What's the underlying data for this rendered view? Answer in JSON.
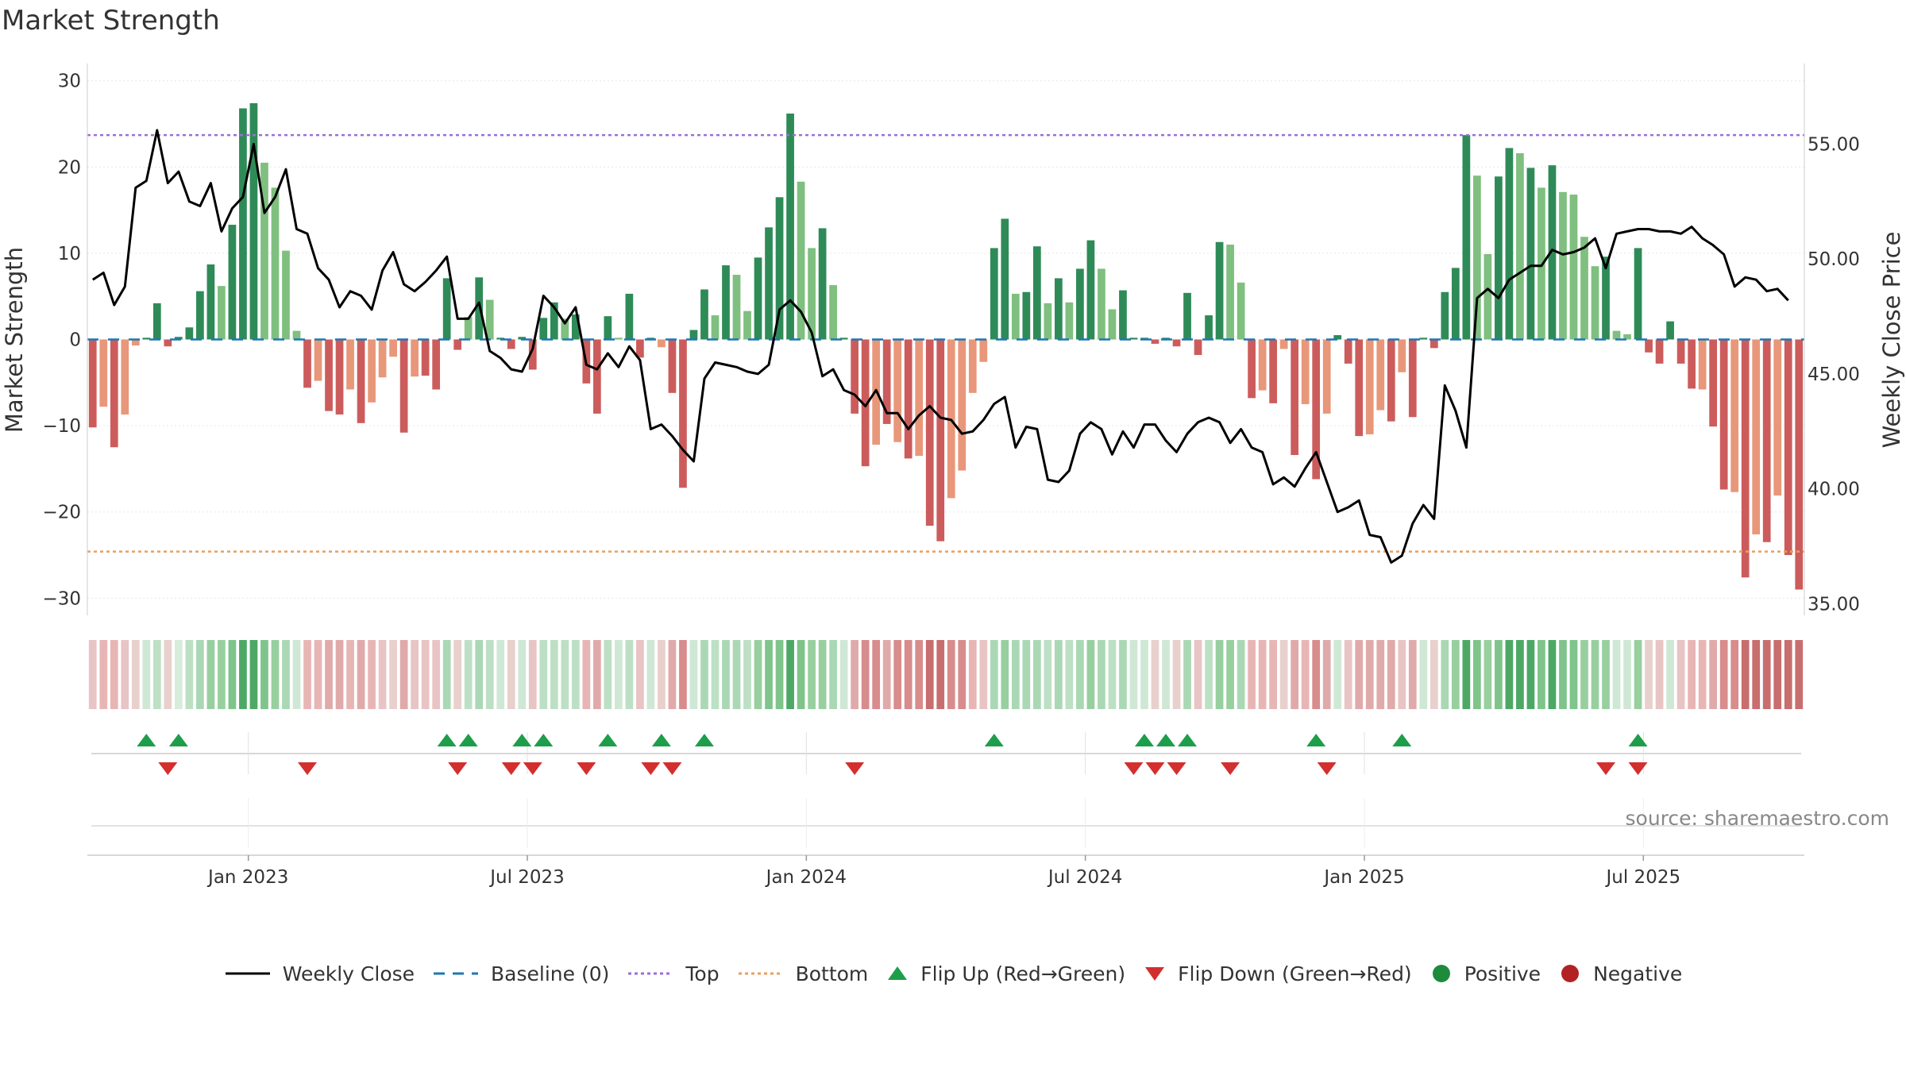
{
  "chart_data": {
    "type": "bar",
    "title": "Market Strength",
    "ylabel_left": "Market Strength",
    "ylabel_right": "Weekly Close Price",
    "ylim_left": [
      -32,
      32
    ],
    "ylim_right": [
      34.5,
      58.5
    ],
    "yticks_left": [
      "30",
      "20",
      "10",
      "0",
      "−10",
      "−20",
      "−30"
    ],
    "yticks_left_values": [
      30,
      20,
      10,
      0,
      -10,
      -20,
      -30
    ],
    "yticks_right": [
      "55.00",
      "50.00",
      "45.00",
      "40.00",
      "35.00"
    ],
    "yticks_right_values": [
      55,
      50,
      45,
      40,
      35
    ],
    "x_labels": [
      "Jan 2023",
      "Jul 2023",
      "Jan 2024",
      "Jul 2024",
      "Jan 2025",
      "Jul 2025"
    ],
    "x_label_weeks": [
      14.5,
      40.5,
      66.5,
      92.5,
      118.5,
      144.5
    ],
    "top_level": 23.7,
    "bottom_level": -24.6,
    "baseline": 0,
    "strength": [
      -10.2,
      -7.8,
      -12.5,
      -8.7,
      -0.7,
      0.2,
      4.2,
      -0.8,
      0.3,
      1.4,
      5.6,
      8.7,
      6.2,
      13.3,
      26.8,
      27.4,
      20.5,
      17.6,
      10.3,
      1.0,
      -5.6,
      -4.8,
      -8.3,
      -8.7,
      -5.8,
      -9.7,
      -7.3,
      -4.4,
      -2.0,
      -10.8,
      -4.3,
      -4.2,
      -5.8,
      7.1,
      -1.2,
      2.6,
      7.2,
      4.6,
      0.2,
      -1.1,
      0.3,
      -3.5,
      2.5,
      4.3,
      2.4,
      2.9,
      -5.1,
      -8.6,
      2.7,
      0.2,
      5.3,
      -2.1,
      0.2,
      -0.9,
      -6.2,
      -17.2,
      1.1,
      5.8,
      2.8,
      8.6,
      7.5,
      3.3,
      9.5,
      13.0,
      16.5,
      26.2,
      18.3,
      10.6,
      12.9,
      6.3,
      0.2,
      -8.6,
      -14.7,
      -12.2,
      -9.8,
      -11.9,
      -13.8,
      -13.5,
      -21.6,
      -23.4,
      -18.4,
      -15.2,
      -6.2,
      -2.6,
      10.6,
      14.0,
      5.3,
      5.5,
      10.8,
      4.2,
      7.1,
      4.3,
      8.2,
      11.5,
      8.2,
      3.5,
      5.7,
      0.2,
      0.2,
      -0.5,
      0.2,
      -0.8,
      5.4,
      -1.8,
      2.8,
      11.3,
      11.0,
      6.6,
      -6.8,
      -5.9,
      -7.4,
      -1.1,
      -13.4,
      -7.5,
      -16.2,
      -8.6,
      0.5,
      -2.8,
      -11.2,
      -11.0,
      -8.2,
      -9.5,
      -3.8,
      -9.0,
      0.2,
      -1.0,
      5.5,
      8.3,
      23.7,
      19.0,
      9.9,
      18.9,
      22.2,
      21.6,
      19.9,
      17.6,
      20.2,
      17.1,
      16.8,
      11.9,
      8.5,
      9.6,
      1.0,
      0.6,
      10.6,
      -1.5,
      -2.8,
      2.1,
      -2.8,
      -5.7,
      -5.8,
      -10.1,
      -17.4,
      -17.7,
      -27.6,
      -22.6,
      -23.5,
      -18.1,
      -25.0,
      -29.0
    ],
    "bar_shades": [
      "#cc5c5c",
      "#e8977a",
      "#cc5c5c",
      "#e8977a",
      "#e8977a",
      "#2e8b57",
      "#2e8b57",
      "#cc5c5c",
      "#2e8b57",
      "#2e8b57",
      "#2e8b57",
      "#2e8b57",
      "#7fbf7f",
      "#2e8b57",
      "#2e8b57",
      "#2e8b57",
      "#7fbf7f",
      "#7fbf7f",
      "#7fbf7f",
      "#7fbf7f",
      "#cc5c5c",
      "#e8977a",
      "#cc5c5c",
      "#cc5c5c",
      "#e8977a",
      "#cc5c5c",
      "#e8977a",
      "#e8977a",
      "#e8977a",
      "#cc5c5c",
      "#e8977a",
      "#cc5c5c",
      "#cc5c5c",
      "#2e8b57",
      "#cc5c5c",
      "#7fbf7f",
      "#2e8b57",
      "#7fbf7f",
      "#2e8b57",
      "#cc5c5c",
      "#2e8b57",
      "#cc5c5c",
      "#2e8b57",
      "#2e8b57",
      "#7fbf7f",
      "#2e8b57",
      "#cc5c5c",
      "#cc5c5c",
      "#2e8b57",
      "#7fbf7f",
      "#2e8b57",
      "#cc5c5c",
      "#2e8b57",
      "#e8977a",
      "#cc5c5c",
      "#cc5c5c",
      "#2e8b57",
      "#2e8b57",
      "#7fbf7f",
      "#2e8b57",
      "#7fbf7f",
      "#7fbf7f",
      "#2e8b57",
      "#2e8b57",
      "#2e8b57",
      "#2e8b57",
      "#7fbf7f",
      "#7fbf7f",
      "#2e8b57",
      "#7fbf7f",
      "#2e8b57",
      "#cc5c5c",
      "#cc5c5c",
      "#e8977a",
      "#cc5c5c",
      "#e8977a",
      "#cc5c5c",
      "#e8977a",
      "#cc5c5c",
      "#cc5c5c",
      "#e8977a",
      "#e8977a",
      "#e8977a",
      "#e8977a",
      "#2e8b57",
      "#2e8b57",
      "#7fbf7f",
      "#2e8b57",
      "#2e8b57",
      "#7fbf7f",
      "#2e8b57",
      "#7fbf7f",
      "#2e8b57",
      "#2e8b57",
      "#7fbf7f",
      "#7fbf7f",
      "#2e8b57",
      "#2e8b57",
      "#2e8b57",
      "#cc5c5c",
      "#2e8b57",
      "#cc5c5c",
      "#2e8b57",
      "#cc5c5c",
      "#2e8b57",
      "#2e8b57",
      "#7fbf7f",
      "#7fbf7f",
      "#cc5c5c",
      "#e8977a",
      "#cc5c5c",
      "#e8977a",
      "#cc5c5c",
      "#e8977a",
      "#cc5c5c",
      "#e8977a",
      "#2e8b57",
      "#cc5c5c",
      "#cc5c5c",
      "#e8977a",
      "#e8977a",
      "#cc5c5c",
      "#e8977a",
      "#cc5c5c",
      "#2e8b57",
      "#cc5c5c",
      "#2e8b57",
      "#2e8b57",
      "#2e8b57",
      "#7fbf7f",
      "#7fbf7f",
      "#2e8b57",
      "#2e8b57",
      "#7fbf7f",
      "#2e8b57",
      "#7fbf7f",
      "#2e8b57",
      "#7fbf7f",
      "#7fbf7f",
      "#7fbf7f",
      "#7fbf7f",
      "#2e8b57",
      "#7fbf7f",
      "#7fbf7f",
      "#2e8b57",
      "#cc5c5c",
      "#cc5c5c",
      "#2e8b57",
      "#cc5c5c",
      "#cc5c5c",
      "#e8977a",
      "#cc5c5c",
      "#cc5c5c",
      "#e8977a",
      "#cc5c5c",
      "#e8977a",
      "#cc5c5c",
      "#e8977a",
      "#cc5c5c",
      "#cc5c5c"
    ],
    "price": [
      49.1,
      49.4,
      48.0,
      48.8,
      53.1,
      53.4,
      55.6,
      53.3,
      53.8,
      52.5,
      52.3,
      53.3,
      51.2,
      52.2,
      52.7,
      55.0,
      52.0,
      52.7,
      53.9,
      51.3,
      51.1,
      49.6,
      49.1,
      47.9,
      48.6,
      48.4,
      47.8,
      49.5,
      50.3,
      48.9,
      48.6,
      49.0,
      49.5,
      50.1,
      47.4,
      47.4,
      48.1,
      46.0,
      45.7,
      45.2,
      45.1,
      46.1,
      48.4,
      47.9,
      47.2,
      47.9,
      45.4,
      45.2,
      45.9,
      45.3,
      46.2,
      45.6,
      42.6,
      42.8,
      42.3,
      41.7,
      41.2,
      44.8,
      45.5,
      45.4,
      45.3,
      45.1,
      45.0,
      45.4,
      47.8,
      48.2,
      47.7,
      46.8,
      44.9,
      45.2,
      44.3,
      44.1,
      43.6,
      44.3,
      43.3,
      43.3,
      42.6,
      43.2,
      43.6,
      43.1,
      43.0,
      42.4,
      42.5,
      43.0,
      43.7,
      44.0,
      41.8,
      42.7,
      42.6,
      40.4,
      40.3,
      40.8,
      42.4,
      42.9,
      42.6,
      41.5,
      42.5,
      41.8,
      42.8,
      42.8,
      42.1,
      41.6,
      42.4,
      42.9,
      43.1,
      42.9,
      42.0,
      42.6,
      41.8,
      41.6,
      40.2,
      40.5,
      40.1,
      40.9,
      41.6,
      40.3,
      39.0,
      39.2,
      39.5,
      38.0,
      37.9,
      36.8,
      37.1,
      38.5,
      39.3,
      38.7,
      44.5,
      43.4,
      41.8,
      48.3,
      48.7,
      48.3,
      49.1,
      49.4,
      49.7,
      49.7,
      50.4,
      50.2,
      50.3,
      50.5,
      50.9,
      49.6,
      51.1,
      51.2,
      51.3,
      51.3,
      51.2,
      51.2,
      51.1,
      51.4,
      50.9,
      50.6,
      50.2,
      48.8,
      49.2,
      49.1,
      48.6,
      48.7,
      48.2
    ],
    "price_line_color": "#000000",
    "strip_colors": [
      "#e8c4c4",
      "#e8b5b5",
      "#e8b5b5",
      "#e8c4c4",
      "#e8d0cc",
      "#cfe8d5",
      "#bde0c5",
      "#e8d0cc",
      "#d7ecdb",
      "#bde0c5",
      "#aad8b4",
      "#98cf9f",
      "#98cf9f",
      "#7fc48b",
      "#4da866",
      "#4da866",
      "#7fc48b",
      "#98cf9f",
      "#aad8b4",
      "#cfe8d5",
      "#e8b5b5",
      "#e8b5b5",
      "#e0aaaa",
      "#e0aaaa",
      "#e8b5b5",
      "#e0aaaa",
      "#e8b5b5",
      "#e8c4c4",
      "#e8d0cc",
      "#e0aaaa",
      "#e8c4c4",
      "#e8c4c4",
      "#e8c4c4",
      "#aad8b4",
      "#e8d0cc",
      "#bde0c5",
      "#aad8b4",
      "#bde0c5",
      "#cfe8d5",
      "#e8d0cc",
      "#cfe8d5",
      "#e8c4c4",
      "#bde0c5",
      "#bde0c5",
      "#bde0c5",
      "#bde0c5",
      "#e8b5b5",
      "#e0aaaa",
      "#bde0c5",
      "#cfe8d5",
      "#bde0c5",
      "#e8c4c4",
      "#cfe8d5",
      "#e8d0cc",
      "#e0aaaa",
      "#d88c8c",
      "#cfe8d5",
      "#aad8b4",
      "#bde0c5",
      "#aad8b4",
      "#aad8b4",
      "#bde0c5",
      "#98cf9f",
      "#7fc48b",
      "#7fc48b",
      "#4da866",
      "#7fc48b",
      "#98cf9f",
      "#98cf9f",
      "#aad8b4",
      "#cfe8d5",
      "#e0aaaa",
      "#d88c8c",
      "#d88c8c",
      "#e0aaaa",
      "#d88c8c",
      "#d88c8c",
      "#d88c8c",
      "#c86e6e",
      "#c86e6e",
      "#d88c8c",
      "#d88c8c",
      "#e8b5b5",
      "#e8c4c4",
      "#aad8b4",
      "#98cf9f",
      "#aad8b4",
      "#aad8b4",
      "#aad8b4",
      "#bde0c5",
      "#aad8b4",
      "#bde0c5",
      "#aad8b4",
      "#98cf9f",
      "#aad8b4",
      "#bde0c5",
      "#aad8b4",
      "#cfe8d5",
      "#cfe8d5",
      "#e8d0cc",
      "#cfe8d5",
      "#e8d0cc",
      "#aad8b4",
      "#e8c4c4",
      "#bde0c5",
      "#98cf9f",
      "#98cf9f",
      "#aad8b4",
      "#e8b5b5",
      "#e8b5b5",
      "#e8b5b5",
      "#e8d0cc",
      "#e0aaaa",
      "#e8b5b5",
      "#d88c8c",
      "#e0aaaa",
      "#cfe8d5",
      "#e8c4c4",
      "#e0aaaa",
      "#e0aaaa",
      "#e0aaaa",
      "#e0aaaa",
      "#e8c4c4",
      "#e0aaaa",
      "#cfe8d5",
      "#e8d0cc",
      "#aad8b4",
      "#98cf9f",
      "#4da866",
      "#7fc48b",
      "#98cf9f",
      "#7fc48b",
      "#4da866",
      "#4da866",
      "#4da866",
      "#7fc48b",
      "#4da866",
      "#7fc48b",
      "#7fc48b",
      "#98cf9f",
      "#98cf9f",
      "#98cf9f",
      "#cfe8d5",
      "#cfe8d5",
      "#98cf9f",
      "#e8d0cc",
      "#e8c4c4",
      "#cfe8d5",
      "#e8c4c4",
      "#e8b5b5",
      "#e8b5b5",
      "#e0aaaa",
      "#d88c8c",
      "#d88c8c",
      "#c86e6e",
      "#c86e6e",
      "#c86e6e",
      "#c86e6e",
      "#c86e6e",
      "#c86e6e"
    ],
    "flip_up_weeks": [
      5.0,
      8.0,
      33.0,
      35.0,
      40.0,
      42.0,
      48.0,
      53.0,
      57.0,
      84.0,
      98.0,
      100.0,
      102.0,
      114.0,
      122.0,
      144.0
    ],
    "flip_down_weeks": [
      7.0,
      20.0,
      34.0,
      39.0,
      41.0,
      46.0,
      52.0,
      54.0,
      71.0,
      97.0,
      99.0,
      101.0,
      106.0,
      115.0,
      141.0,
      144.0
    ],
    "flip_up_color": "#1e9e4a",
    "flip_down_color": "#d32f2f",
    "source": "source: sharemaestro.com",
    "legend": [
      {
        "label": "Weekly Close",
        "symbol": "line",
        "color": "#000000"
      },
      {
        "label": "Baseline (0)",
        "symbol": "dash",
        "color": "#1f77b4"
      },
      {
        "label": "Top",
        "symbol": "dot",
        "color": "#9a6fd8"
      },
      {
        "label": "Bottom",
        "symbol": "dot",
        "color": "#e8a060"
      },
      {
        "label": "Flip Up (Red→Green)",
        "symbol": "triangle-up",
        "color": "#1e9e4a"
      },
      {
        "label": "Flip Down (Green→Red)",
        "symbol": "triangle-down",
        "color": "#d32f2f"
      },
      {
        "label": "Positive",
        "symbol": "circle",
        "color": "#1e8a3c"
      },
      {
        "label": "Negative",
        "symbol": "circle",
        "color": "#b22222"
      }
    ]
  }
}
